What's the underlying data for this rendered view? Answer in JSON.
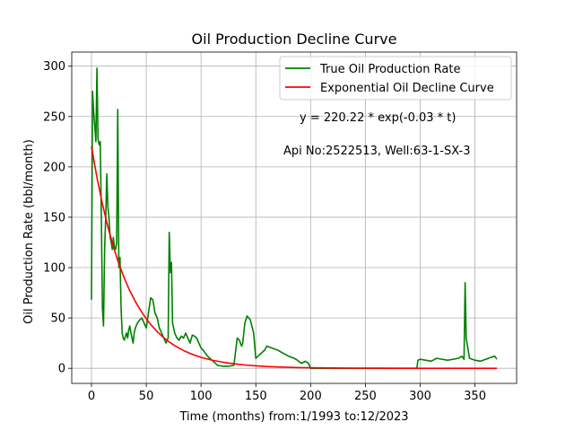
{
  "chart_data": {
    "type": "line",
    "title": "Oil Production Decline Curve",
    "xlabel": "Time (months) from:1/1993 to:12/2023",
    "ylabel": "Oil Production Rate (bbl/month)",
    "xlim": [
      -18,
      388
    ],
    "ylim": [
      -15,
      314
    ],
    "xticks": [
      0,
      50,
      100,
      150,
      200,
      250,
      300,
      350
    ],
    "yticks": [
      0,
      50,
      100,
      150,
      200,
      250,
      300
    ],
    "grid": true,
    "legend_position": "top-right",
    "annotations": [
      "y = 220.22 * exp(-0.03 * t)",
      "Api No:2522513, Well:63-1-SX-3"
    ],
    "series": [
      {
        "name": "True Oil Production Rate",
        "color": "#008000",
        "x": [
          0,
          1,
          2,
          3,
          4,
          5,
          6,
          7,
          8,
          9,
          10,
          11,
          12,
          13,
          14,
          15,
          16,
          17,
          18,
          19,
          20,
          21,
          22,
          23,
          24,
          25,
          26,
          27,
          28,
          29,
          30,
          31,
          32,
          33,
          34,
          35,
          36,
          37,
          38,
          39,
          40,
          42,
          44,
          46,
          48,
          50,
          52,
          54,
          56,
          58,
          60,
          62,
          64,
          66,
          68,
          70,
          71,
          72,
          73,
          74,
          75,
          76,
          78,
          80,
          82,
          84,
          86,
          88,
          90,
          92,
          94,
          96,
          98,
          100,
          102,
          104,
          106,
          108,
          110,
          115,
          120,
          125,
          130,
          133,
          135,
          137,
          138,
          140,
          142,
          145,
          148,
          150,
          152,
          155,
          158,
          160,
          165,
          170,
          175,
          180,
          185,
          188,
          190,
          192,
          195,
          198,
          200,
          250,
          297,
          298,
          300,
          305,
          310,
          315,
          320,
          325,
          330,
          335,
          338,
          340,
          341,
          342,
          345,
          350,
          355,
          360,
          365,
          368,
          370
        ],
        "y": [
          68,
          275,
          255,
          240,
          225,
          298,
          228,
          222,
          225,
          150,
          60,
          42,
          120,
          150,
          193,
          160,
          150,
          130,
          125,
          118,
          130,
          120,
          118,
          125,
          257,
          100,
          110,
          60,
          35,
          30,
          28,
          32,
          35,
          30,
          38,
          42,
          35,
          30,
          25,
          35,
          40,
          45,
          48,
          50,
          45,
          40,
          55,
          70,
          68,
          55,
          50,
          40,
          35,
          30,
          25,
          30,
          135,
          95,
          105,
          45,
          40,
          35,
          30,
          28,
          32,
          30,
          35,
          30,
          25,
          33,
          32,
          30,
          25,
          20,
          18,
          15,
          12,
          10,
          8,
          3,
          2,
          2,
          3,
          30,
          28,
          22,
          25,
          45,
          52,
          48,
          35,
          10,
          12,
          15,
          18,
          22,
          20,
          18,
          15,
          12,
          10,
          8,
          6,
          5,
          7,
          5,
          0,
          0,
          0,
          8,
          9,
          8,
          7,
          10,
          9,
          8,
          9,
          10,
          12,
          9,
          85,
          30,
          10,
          8,
          7,
          9,
          11,
          12,
          9
        ]
      },
      {
        "name": "Exponential Oil Decline Curve",
        "color": "#ff0000",
        "x": [
          0,
          5,
          10,
          15,
          20,
          25,
          30,
          35,
          40,
          45,
          50,
          55,
          60,
          65,
          70,
          75,
          80,
          85,
          90,
          95,
          100,
          110,
          120,
          130,
          140,
          150,
          160,
          170,
          180,
          190,
          200,
          220,
          240,
          260,
          280,
          300,
          320,
          340,
          360,
          370
        ],
        "y": [
          220.22,
          189.5,
          163.1,
          140.4,
          120.8,
          104.0,
          89.5,
          77.0,
          66.3,
          57.1,
          49.1,
          42.3,
          36.4,
          31.3,
          26.9,
          23.2,
          20.0,
          17.2,
          14.8,
          12.7,
          10.9,
          8.1,
          6.0,
          4.5,
          3.3,
          2.5,
          1.8,
          1.3,
          1.0,
          0.7,
          0.5,
          0.3,
          0.2,
          0.1,
          0.0,
          0.0,
          0.0,
          0.0,
          0.0,
          0.0
        ]
      }
    ]
  }
}
